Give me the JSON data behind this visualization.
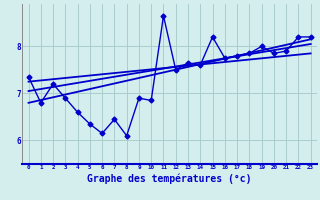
{
  "background_color": "#d4eeee",
  "grid_color": "#aacccc",
  "line_color": "#0000cc",
  "xlabel": "Graphe des températures (°c)",
  "xlabel_fontsize": 7,
  "ylabel_ticks": [
    6,
    7,
    8
  ],
  "x_ticks": [
    0,
    1,
    2,
    3,
    4,
    5,
    6,
    7,
    8,
    9,
    10,
    11,
    12,
    13,
    14,
    15,
    16,
    17,
    18,
    19,
    20,
    21,
    22,
    23
  ],
  "xlim": [
    -0.5,
    23.5
  ],
  "ylim": [
    5.5,
    8.9
  ],
  "series": [
    {
      "x": [
        0,
        1,
        2,
        3,
        4,
        5,
        6,
        7,
        8,
        9,
        10,
        11,
        12,
        13,
        14,
        15,
        16,
        17,
        18,
        19,
        20,
        21,
        22,
        23
      ],
      "y": [
        7.35,
        6.8,
        7.2,
        6.9,
        6.6,
        6.35,
        6.15,
        6.45,
        6.1,
        6.9,
        6.85,
        8.65,
        7.5,
        7.65,
        7.6,
        8.2,
        7.75,
        7.8,
        7.85,
        8.0,
        7.85,
        7.9,
        8.2,
        8.2
      ],
      "marker": "D",
      "markersize": 2.5,
      "linewidth": 1.0
    },
    {
      "x": [
        0,
        23
      ],
      "y": [
        6.8,
        8.15
      ],
      "marker": null,
      "linewidth": 1.3
    },
    {
      "x": [
        0,
        23
      ],
      "y": [
        7.05,
        8.05
      ],
      "marker": null,
      "linewidth": 1.3
    },
    {
      "x": [
        0,
        23
      ],
      "y": [
        7.25,
        7.85
      ],
      "marker": null,
      "linewidth": 1.3
    }
  ]
}
